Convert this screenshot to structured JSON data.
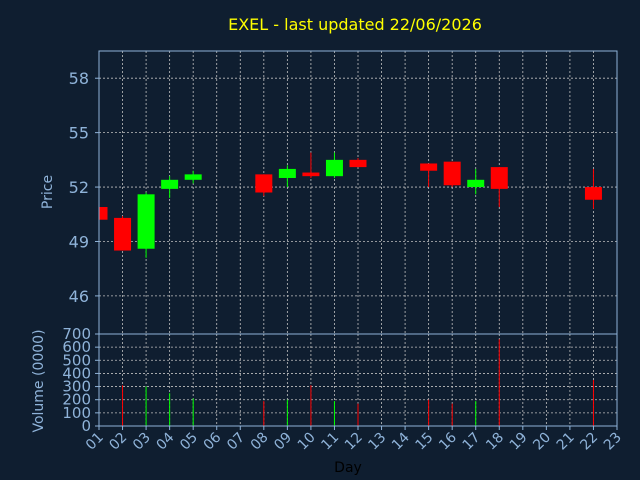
{
  "colors": {
    "background": "#0f1e30",
    "title": "#ffff00",
    "axis_text": "#8fb3d9",
    "frame": "#8fb3d9",
    "grid": "#c0c0c0",
    "up": "#00ff00",
    "down": "#ff0000",
    "axis_title": "#000000"
  },
  "chart_data": {
    "type": "candlestick",
    "title": "EXEL - last updated 22/06/2026",
    "xlabel": "Day",
    "grid": true,
    "x_ticks": [
      "01",
      "02",
      "03",
      "04",
      "05",
      "06",
      "07",
      "08",
      "09",
      "10",
      "11",
      "12",
      "13",
      "14",
      "15",
      "16",
      "17",
      "18",
      "19",
      "20",
      "21",
      "22",
      "23"
    ],
    "price": {
      "ylabel": "Price",
      "ylim": [
        43.9,
        59.5
      ],
      "yticks": [
        46,
        49,
        52,
        55,
        58
      ],
      "candles": [
        {
          "day": 1,
          "open": 50.9,
          "high": 51.2,
          "low": 49.9,
          "close": 50.2
        },
        {
          "day": 2,
          "open": 50.3,
          "high": 50.4,
          "low": 48.5,
          "close": 48.5
        },
        {
          "day": 3,
          "open": 48.6,
          "high": 51.7,
          "low": 48.1,
          "close": 51.6
        },
        {
          "day": 4,
          "open": 51.9,
          "high": 52.6,
          "low": 51.4,
          "close": 52.4
        },
        {
          "day": 5,
          "open": 52.4,
          "high": 52.9,
          "low": 52.2,
          "close": 52.7
        },
        {
          "day": 8,
          "open": 52.7,
          "high": 52.7,
          "low": 51.5,
          "close": 51.7
        },
        {
          "day": 9,
          "open": 52.5,
          "high": 53.2,
          "low": 52.0,
          "close": 53.0
        },
        {
          "day": 10,
          "open": 52.8,
          "high": 53.9,
          "low": 52.5,
          "close": 52.6
        },
        {
          "day": 11,
          "open": 52.6,
          "high": 53.9,
          "low": 52.5,
          "close": 53.5
        },
        {
          "day": 12,
          "open": 53.5,
          "high": 53.6,
          "low": 53.1,
          "close": 53.1
        },
        {
          "day": 15,
          "open": 53.3,
          "high": 53.3,
          "low": 52.0,
          "close": 52.9
        },
        {
          "day": 16,
          "open": 53.4,
          "high": 53.4,
          "low": 52.0,
          "close": 52.1
        },
        {
          "day": 17,
          "open": 52.0,
          "high": 53.0,
          "low": 51.6,
          "close": 52.4
        },
        {
          "day": 18,
          "open": 53.1,
          "high": 53.1,
          "low": 50.9,
          "close": 51.9
        },
        {
          "day": 22,
          "open": 52.0,
          "high": 53.0,
          "low": 50.8,
          "close": 51.3
        }
      ]
    },
    "volume": {
      "ylabel": "Volume (0000)",
      "ylim": [
        0,
        700
      ],
      "yticks": [
        0,
        100,
        200,
        300,
        400,
        500,
        600,
        700
      ],
      "bars": [
        {
          "day": 2,
          "value": 310,
          "direction": "down"
        },
        {
          "day": 3,
          "value": 300,
          "direction": "up"
        },
        {
          "day": 4,
          "value": 250,
          "direction": "up"
        },
        {
          "day": 5,
          "value": 210,
          "direction": "up"
        },
        {
          "day": 8,
          "value": 190,
          "direction": "down"
        },
        {
          "day": 9,
          "value": 200,
          "direction": "up"
        },
        {
          "day": 10,
          "value": 310,
          "direction": "down"
        },
        {
          "day": 11,
          "value": 190,
          "direction": "up"
        },
        {
          "day": 12,
          "value": 170,
          "direction": "down"
        },
        {
          "day": 15,
          "value": 200,
          "direction": "down"
        },
        {
          "day": 16,
          "value": 170,
          "direction": "down"
        },
        {
          "day": 17,
          "value": 190,
          "direction": "up"
        },
        {
          "day": 18,
          "value": 660,
          "direction": "down"
        },
        {
          "day": 22,
          "value": 350,
          "direction": "down"
        }
      ]
    }
  }
}
